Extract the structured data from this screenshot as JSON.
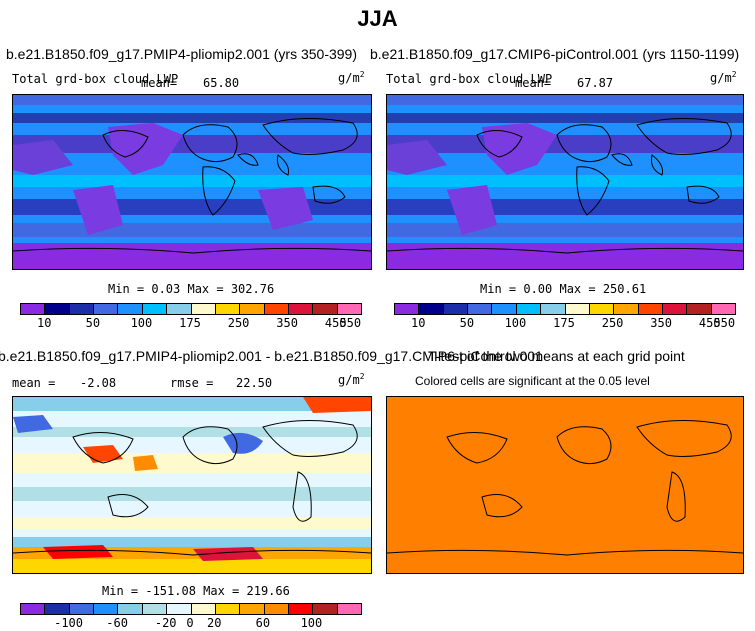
{
  "title": "JJA",
  "panels": [
    {
      "case": "b.e21.B1850.f09_g17.PMIP4-pliomip2.001 (yrs 350-399)",
      "variable": "Total grd-box cloud LWP",
      "mean_label": "mean=",
      "mean": "65.80",
      "units": "g/m",
      "units_exp": "2",
      "min_max": "Min =   0.03 Max = 302.76"
    },
    {
      "case": "b.e21.B1850.f09_g17.CMIP6-piControl.001 (yrs 1150-1199)",
      "variable": "Total grd-box cloud LWP",
      "mean_label": "mean=",
      "mean": "67.87",
      "units": "g/m",
      "units_exp": "2",
      "min_max": "Min =   0.00 Max = 250.61"
    },
    {
      "case": "b.e21.B1850.f09_g17.PMIP4-pliomip2.001 - b.e21.B1850.f09_g17.CMIP6-piControl.001",
      "mean_label": "mean =",
      "mean": "-2.08",
      "rmse_label": "rmse =",
      "rmse": "22.50",
      "units": "g/m",
      "units_exp": "2",
      "min_max": "Min = -151.08 Max = 219.66"
    },
    {
      "case": "T-test of the two means at each grid point",
      "subtitle": "Colored cells are significant at the 0.05 level"
    }
  ],
  "colorbar_top": {
    "labels": [
      "10",
      "50",
      "100",
      "175",
      "250",
      "350",
      "450",
      "550"
    ],
    "colors": [
      "#8a2be2",
      "#00008b",
      "#1c2fa8",
      "#4169e1",
      "#1e90ff",
      "#00bfff",
      "#87ceeb",
      "#fffacd",
      "#ffd700",
      "#ffa500",
      "#ff4500",
      "#dc143c",
      "#b22222",
      "#ff69b4"
    ]
  },
  "colorbar_diff": {
    "labels": [
      "-100",
      "-60",
      "-20",
      "0",
      "20",
      "60",
      "100"
    ],
    "colors": [
      "#8a2be2",
      "#1c2fa8",
      "#4169e1",
      "#1e90ff",
      "#87ceeb",
      "#b0e0e6",
      "#e6f7ff",
      "#fffacd",
      "#ffd700",
      "#ffa500",
      "#ff8c00",
      "#ff0000",
      "#b22222",
      "#ff69b4"
    ]
  },
  "chart_data": [
    {
      "type": "heatmap",
      "title": "b.e21.B1850.f09_g17.PMIP4-pliomip2.001 (yrs 350-399)",
      "variable": "Total grd-box cloud LWP",
      "units": "g/m^2",
      "mean": 65.8,
      "min": 0.03,
      "max": 302.76,
      "levels": [
        10,
        50,
        100,
        175,
        250,
        350,
        450,
        550
      ]
    },
    {
      "type": "heatmap",
      "title": "b.e21.B1850.f09_g17.CMIP6-piControl.001 (yrs 1150-1199)",
      "variable": "Total grd-box cloud LWP",
      "units": "g/m^2",
      "mean": 67.87,
      "min": 0.0,
      "max": 250.61,
      "levels": [
        10,
        50,
        100,
        175,
        250,
        350,
        450,
        550
      ]
    },
    {
      "type": "heatmap",
      "title": "b.e21.B1850.f09_g17.PMIP4-pliomip2.001 - b.e21.B1850.f09_g17.CMIP6-piControl.001",
      "units": "g/m^2",
      "mean": -2.08,
      "rmse": 22.5,
      "min": -151.08,
      "max": 219.66,
      "levels": [
        -100,
        -60,
        -20,
        0,
        20,
        60,
        100
      ]
    },
    {
      "type": "heatmap",
      "title": "T-test of the two means at each grid point",
      "subtitle": "Colored cells are significant at the 0.05 level"
    }
  ]
}
